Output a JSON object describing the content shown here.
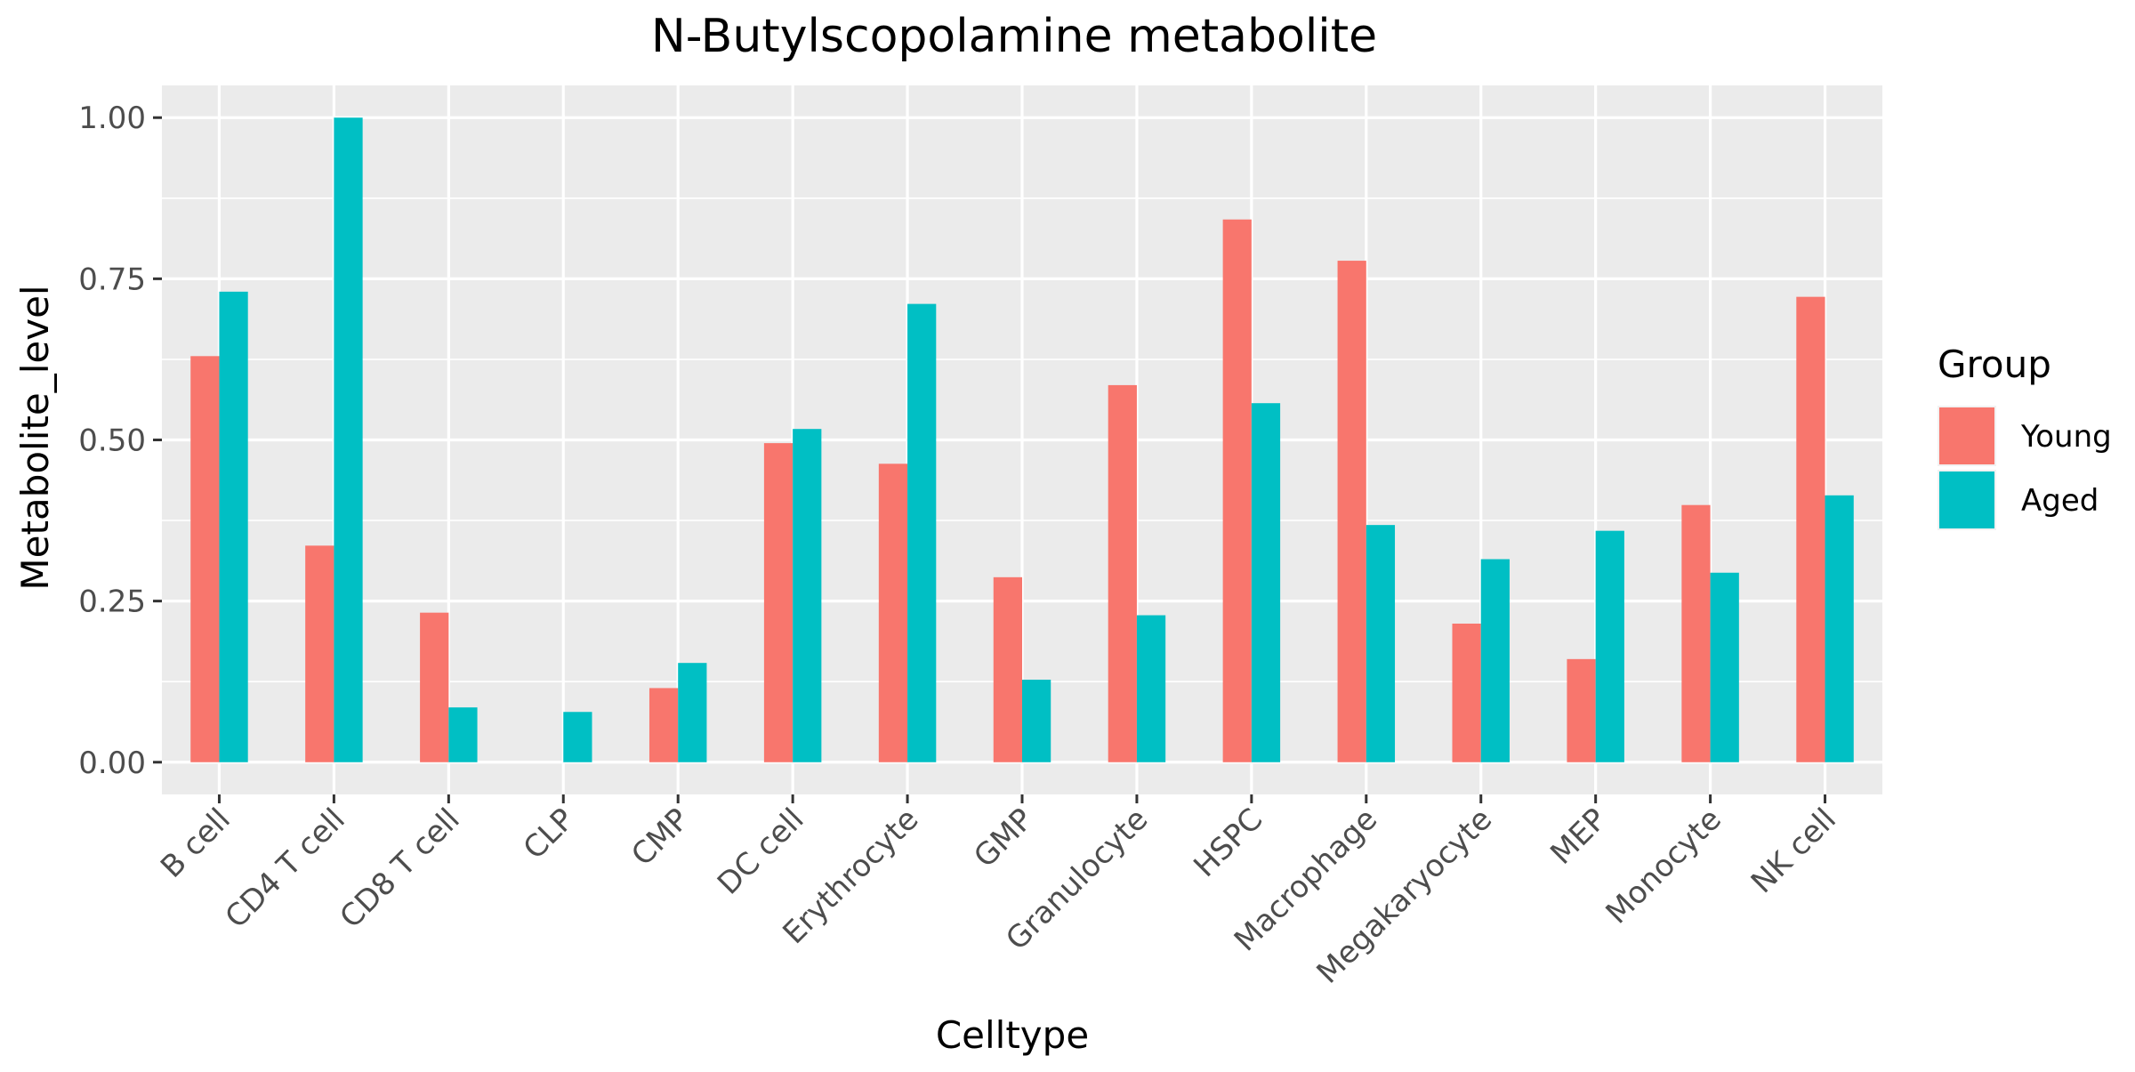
{
  "chart_data": {
    "type": "bar",
    "title": "N-Butylscopolamine metabolite",
    "xlabel": "Celltype",
    "ylabel": "Metabolite_level",
    "ylim": [
      -0.05,
      1.05
    ],
    "yticks": [
      "0.00",
      "0.25",
      "0.50",
      "0.75",
      "1.00"
    ],
    "grid": true,
    "legend": {
      "title": "Group",
      "position": "right",
      "entries": [
        "Young",
        "Aged"
      ]
    },
    "categories": [
      "B cell",
      "CD4 T cell",
      "CD8 T cell",
      "CLP",
      "CMP",
      "DC cell",
      "Erythrocyte",
      "GMP",
      "Granulocyte",
      "HSPC",
      "Macrophage",
      "Megakaryocyte",
      "MEP",
      "Monocyte",
      "NK cell"
    ],
    "series": [
      {
        "name": "Young",
        "color": "#F8766D",
        "values": [
          0.63,
          0.336,
          0.232,
          0.0,
          0.115,
          0.495,
          0.463,
          0.287,
          0.585,
          0.842,
          0.778,
          0.215,
          0.16,
          0.399,
          0.722
        ]
      },
      {
        "name": "Aged",
        "color": "#00BFC4",
        "values": [
          0.73,
          1.0,
          0.085,
          0.078,
          0.154,
          0.517,
          0.711,
          0.128,
          0.228,
          0.557,
          0.368,
          0.315,
          0.359,
          0.294,
          0.414
        ]
      }
    ]
  }
}
